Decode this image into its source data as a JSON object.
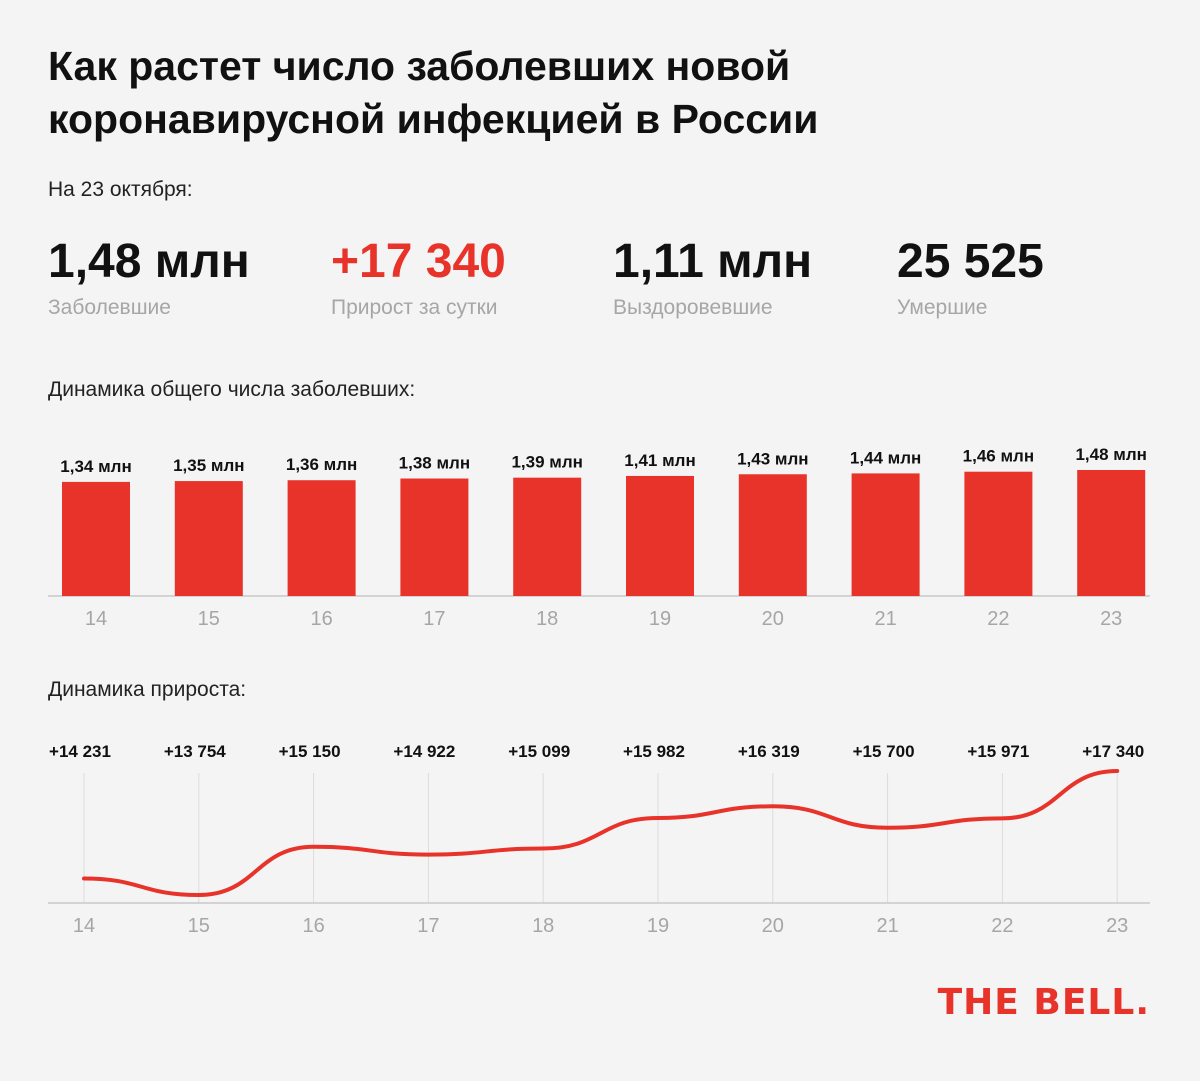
{
  "header": {
    "title_lines": [
      "Как растет число заболевших новой",
      "коронавирусной инфекцией в России"
    ],
    "date_label": "На 23 октября:"
  },
  "stats": [
    {
      "value": "1,48 млн",
      "label": "Заболевшие",
      "accent": false
    },
    {
      "value": "+17 340",
      "label": "Прирост за сутки",
      "accent": true
    },
    {
      "value": "1,11 млн",
      "label": "Выздоровевшие",
      "accent": false
    },
    {
      "value": "25 525",
      "label": "Умершие",
      "accent": false
    }
  ],
  "sections": {
    "total_label": "Динамика общего числа заболевших:",
    "growth_label": "Динамика прироста:"
  },
  "colors": {
    "accent": "#e8332a",
    "axis": "#c8c8c8",
    "grid": "#dcdcdc",
    "tick": "#a6a6a6"
  },
  "chart_data": [
    {
      "type": "bar",
      "categories": [
        "14",
        "15",
        "16",
        "17",
        "18",
        "19",
        "20",
        "21",
        "22",
        "23"
      ],
      "values": [
        1.34,
        1.35,
        1.36,
        1.38,
        1.39,
        1.41,
        1.43,
        1.44,
        1.46,
        1.48
      ],
      "value_labels": [
        "1,34 млн",
        "1,35 млн",
        "1,36 млн",
        "1,38 млн",
        "1,39 млн",
        "1,41 млн",
        "1,43 млн",
        "1,44 млн",
        "1,46 млн",
        "1,48 млн"
      ],
      "ylim": [
        0,
        1.48
      ],
      "grid": false
    },
    {
      "type": "line",
      "categories": [
        "14",
        "15",
        "16",
        "17",
        "18",
        "19",
        "20",
        "21",
        "22",
        "23"
      ],
      "values": [
        14231,
        13754,
        15150,
        14922,
        15099,
        15982,
        16319,
        15700,
        15971,
        17340
      ],
      "value_labels": [
        "+14 231",
        "+13 754",
        "+15 150",
        "+14 922",
        "+15 099",
        "+15 982",
        "+16 319",
        "+15 700",
        "+15 971",
        "+17 340"
      ],
      "grid": true
    }
  ],
  "logo": {
    "text": "THE BELL."
  }
}
